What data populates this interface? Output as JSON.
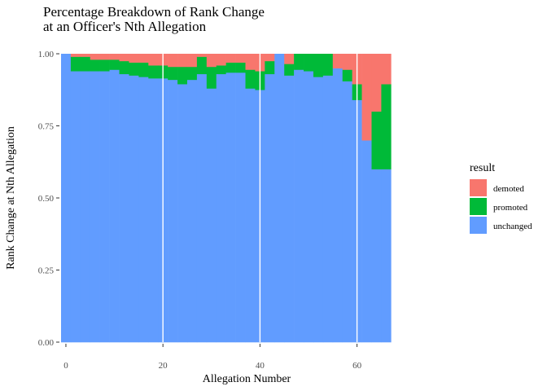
{
  "chart_data": {
    "type": "bar",
    "stacked": true,
    "normalized": true,
    "title": "Percentage Breakdown of Rank Change\nat an Officer's Nth Allegation",
    "xlabel": "Allegation Number",
    "ylabel": "Rank Change at Nth Allegation",
    "xlim": [
      -1,
      75.5
    ],
    "ylim": [
      0,
      1
    ],
    "x_ticks": [
      0,
      20,
      40,
      60
    ],
    "y_ticks": [
      0,
      0.25,
      0.5,
      0.75,
      1.0
    ],
    "y_tick_labels": [
      "0.00",
      "0.25",
      "0.50",
      "0.75",
      "1.00"
    ],
    "legend_title": "result",
    "legend_position": "right",
    "grid": false,
    "series": [
      {
        "name": "demoted",
        "color": "#F8766D"
      },
      {
        "name": "promoted",
        "color": "#00BA38"
      },
      {
        "name": "unchanged",
        "color": "#619CFF"
      }
    ],
    "bars": [
      {
        "x": 0,
        "unchanged": 1.0,
        "promoted": 0.0,
        "demoted": 0.0
      },
      {
        "x": 2,
        "unchanged": 0.94,
        "promoted": 0.05,
        "demoted": 0.01
      },
      {
        "x": 4,
        "unchanged": 0.94,
        "promoted": 0.05,
        "demoted": 0.01
      },
      {
        "x": 6,
        "unchanged": 0.94,
        "promoted": 0.04,
        "demoted": 0.02
      },
      {
        "x": 8,
        "unchanged": 0.94,
        "promoted": 0.04,
        "demoted": 0.02
      },
      {
        "x": 10,
        "unchanged": 0.945,
        "promoted": 0.035,
        "demoted": 0.02
      },
      {
        "x": 12,
        "unchanged": 0.93,
        "promoted": 0.045,
        "demoted": 0.025
      },
      {
        "x": 14,
        "unchanged": 0.925,
        "promoted": 0.045,
        "demoted": 0.03
      },
      {
        "x": 16,
        "unchanged": 0.92,
        "promoted": 0.05,
        "demoted": 0.03
      },
      {
        "x": 18,
        "unchanged": 0.915,
        "promoted": 0.045,
        "demoted": 0.04
      },
      {
        "x": 20,
        "unchanged": 0.915,
        "promoted": 0.045,
        "demoted": 0.04
      },
      {
        "x": 22,
        "unchanged": 0.91,
        "promoted": 0.045,
        "demoted": 0.045
      },
      {
        "x": 24,
        "unchanged": 0.895,
        "promoted": 0.06,
        "demoted": 0.045
      },
      {
        "x": 26,
        "unchanged": 0.91,
        "promoted": 0.045,
        "demoted": 0.045
      },
      {
        "x": 28,
        "unchanged": 0.93,
        "promoted": 0.06,
        "demoted": 0.01
      },
      {
        "x": 30,
        "unchanged": 0.88,
        "promoted": 0.075,
        "demoted": 0.045
      },
      {
        "x": 32,
        "unchanged": 0.93,
        "promoted": 0.03,
        "demoted": 0.04
      },
      {
        "x": 34,
        "unchanged": 0.935,
        "promoted": 0.035,
        "demoted": 0.03
      },
      {
        "x": 36,
        "unchanged": 0.935,
        "promoted": 0.035,
        "demoted": 0.03
      },
      {
        "x": 38,
        "unchanged": 0.88,
        "promoted": 0.065,
        "demoted": 0.055
      },
      {
        "x": 40,
        "unchanged": 0.875,
        "promoted": 0.065,
        "demoted": 0.06
      },
      {
        "x": 42,
        "unchanged": 0.93,
        "promoted": 0.045,
        "demoted": 0.025
      },
      {
        "x": 44,
        "unchanged": 1.0,
        "promoted": 0.0,
        "demoted": 0.0
      },
      {
        "x": 46,
        "unchanged": 0.925,
        "promoted": 0.04,
        "demoted": 0.035
      },
      {
        "x": 48,
        "unchanged": 0.945,
        "promoted": 0.055,
        "demoted": 0.0
      },
      {
        "x": 50,
        "unchanged": 0.94,
        "promoted": 0.06,
        "demoted": 0.0
      },
      {
        "x": 52,
        "unchanged": 0.92,
        "promoted": 0.08,
        "demoted": 0.0
      },
      {
        "x": 54,
        "unchanged": 0.925,
        "promoted": 0.075,
        "demoted": 0.0
      },
      {
        "x": 56,
        "unchanged": 0.95,
        "promoted": 0.0,
        "demoted": 0.05
      },
      {
        "x": 58,
        "unchanged": 0.905,
        "promoted": 0.04,
        "demoted": 0.055
      },
      {
        "x": 60,
        "unchanged": 0.84,
        "promoted": 0.055,
        "demoted": 0.105
      },
      {
        "x": 62,
        "unchanged": 0.7,
        "promoted": 0.0,
        "demoted": 0.3
      },
      {
        "x": 64,
        "unchanged": 0.6,
        "promoted": 0.2,
        "demoted": 0.2
      },
      {
        "x": 66,
        "unchanged": 0.6,
        "promoted": 0.295,
        "demoted": 0.105
      }
    ]
  }
}
